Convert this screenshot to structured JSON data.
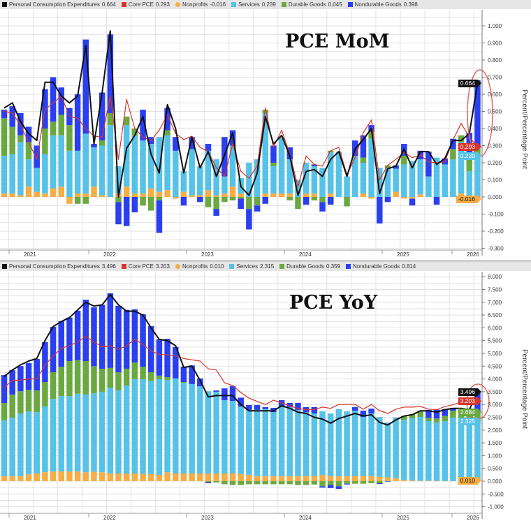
{
  "colors": {
    "pce": "#111111",
    "core": "#d8342b",
    "nonprofits": "#f7ad45",
    "services": "#56c2e8",
    "durable": "#6aa940",
    "nondurable": "#2a3ff0",
    "annotation": "#e06a6a"
  },
  "axis_title": "Percent/Percentage Point",
  "chart_data": [
    {
      "type": "bar",
      "title": "PCE MoM",
      "stacked": true,
      "ylabel": "Percent/Percentage Point",
      "ylim": [
        -0.33,
        1.05
      ],
      "y_ticks": [
        "1.000",
        "0.900",
        "0.800",
        "0.700",
        "0.600",
        "0.500",
        "0.400",
        "0.300",
        "0.200",
        "0.100",
        "0.000",
        "-0.100",
        "-0.200",
        "-0.300"
      ],
      "x_tick_labels": [
        "2021",
        "2022",
        "2023",
        "2024",
        "2025",
        "2026"
      ],
      "grid": true,
      "legend": [
        {
          "name": "Personal Consumption Expenditures",
          "value": "0.664",
          "key": "pce"
        },
        {
          "name": "Core PCE",
          "value": "0.293",
          "key": "core"
        },
        {
          "name": "Nonprofits",
          "value": "-0.016",
          "key": "nonprofits"
        },
        {
          "name": "Services",
          "value": "0.239",
          "key": "services"
        },
        {
          "name": "Durable Goods",
          "value": "0.045",
          "key": "durable"
        },
        {
          "name": "Nondurable Goods",
          "value": "0.398",
          "key": "nondurable"
        }
      ],
      "last_value_tags": [
        {
          "text": "0.664",
          "key": "pce"
        },
        {
          "text": "0.293",
          "key": "core"
        },
        {
          "text": "0.239",
          "key": "services"
        },
        {
          "text": "-0.016",
          "key": "nonprofits"
        }
      ],
      "bar_series": {
        "nonprofits": [
          0.02,
          0.02,
          0.01,
          0.06,
          0.03,
          0.02,
          0.05,
          0.06,
          -0.04,
          0.02,
          0.02,
          0.06,
          0.01,
          0,
          0.02,
          0.06,
          0.02,
          0.02,
          0.05,
          0.03,
          0.04,
          -0.01,
          0.03,
          0.01,
          0.01,
          0.04,
          0.01,
          0.02,
          0.06,
          0.02,
          0,
          0,
          0.02,
          0.02,
          0.02,
          0.02,
          0,
          0.02,
          0.02,
          0,
          0.02,
          0,
          0,
          0,
          0.02,
          -0.01,
          0,
          0,
          0.03,
          -0.01,
          -0.01,
          0.015,
          0,
          0,
          0,
          0,
          0.02,
          0,
          -0.016
        ],
        "services": [
          0.22,
          0.23,
          0.31,
          0.16,
          0.14,
          0.23,
          0.31,
          0.3,
          0.27,
          0.25,
          0.35,
          0.23,
          0.29,
          0.42,
          0.16,
          0.36,
          0.34,
          0.31,
          0.26,
          0.32,
          0.32,
          0.27,
          0.12,
          0.27,
          0.17,
          0.23,
          0.21,
          0.1,
          0.24,
          0.09,
          0.2,
          0.22,
          0.47,
          0.16,
          0.33,
          0.2,
          0.1,
          0.18,
          0.16,
          0.17,
          0.24,
          0.265,
          0.12,
          0.24,
          0.18,
          0.34,
          0.17,
          0.17,
          0.135,
          0.19,
          0.21,
          0.205,
          0.12,
          0.23,
          0.19,
          0.22,
          0.3,
          0.15,
          0.239
        ],
        "durable": [
          0.22,
          0.16,
          0.04,
          0.1,
          0,
          0.15,
          0.08,
          0.12,
          0.15,
          -0.04,
          -0.04,
          0,
          0.03,
          0.07,
          -0.03,
          0.05,
          0.04,
          -0.05,
          -0.08,
          -0.02,
          0.03,
          0,
          0,
          0,
          0,
          -0.06,
          -0.07,
          -0.03,
          -0.02,
          -0.01,
          -0.07,
          -0.05,
          0.02,
          0.02,
          0,
          -0.02,
          -0.07,
          0,
          -0.02,
          -0.03,
          0.01,
          0,
          -0.055,
          0,
          0.03,
          0.04,
          0,
          0.015,
          0,
          0.05,
          0,
          0,
          0,
          0,
          0,
          0.06,
          0.04,
          0.1,
          0.045
        ],
        "nondurable": [
          0.05,
          0.12,
          0.13,
          0.09,
          0.13,
          0.23,
          0.26,
          0.16,
          0.1,
          0.33,
          0.55,
          0.02,
          0.28,
          0.46,
          -0.13,
          -0.17,
          -0.09,
          0.18,
          0.04,
          -0.19,
          0.13,
          0.08,
          -0.05,
          0.07,
          -0.03,
          0.04,
          -0.04,
          0.23,
          0.09,
          -0.06,
          -0.12,
          -0.035,
          -0.04,
          0.1,
          0,
          0.07,
          0,
          -0.045,
          0.01,
          -0.055,
          -0.045,
          0,
          0,
          0.09,
          0.13,
          0.04,
          -0.155,
          -0.03,
          0.02,
          0.07,
          -0.04,
          0.05,
          0.145,
          -0.045,
          0.035,
          0.06,
          -0.03,
          0.125,
          0.398
        ]
      },
      "line_series": {
        "pce": [
          0.52,
          0.55,
          0.44,
          0.37,
          0.33,
          0.67,
          0.67,
          0.59,
          0.55,
          0.59,
          0.885,
          0.31,
          0.61,
          0.97,
          0,
          0.285,
          0.36,
          0.47,
          0.25,
          0.14,
          0.54,
          0.4,
          0.14,
          0.35,
          0.17,
          0.265,
          0.12,
          0.245,
          0.375,
          0.06,
          0.01,
          0.14,
          0.47,
          0.31,
          0.36,
          0.24,
          0.01,
          0.15,
          0.16,
          0.12,
          0.22,
          0.265,
          0.12,
          0.28,
          0.335,
          0.4,
          0.02,
          0.165,
          0.18,
          0.28,
          0.17,
          0.265,
          0.265,
          0.19,
          0.225,
          0.33,
          0.33,
          0.37,
          0.664
        ],
        "core": [
          0.5,
          0.49,
          0.42,
          0.32,
          0.22,
          0.51,
          0.55,
          0.59,
          0.47,
          0.46,
          0.4,
          0.355,
          0.35,
          0.59,
          0.22,
          0.57,
          0.4,
          0.35,
          0.33,
          0.39,
          0.48,
          0.37,
          0.335,
          0.355,
          0.29,
          0.265,
          0.17,
          0.12,
          0.31,
          0.15,
          0.11,
          0.18,
          0.52,
          0.29,
          0.39,
          0.25,
          0.06,
          0.24,
          0.19,
          0.18,
          0.27,
          0.29,
          0.13,
          0.23,
          0.375,
          0.45,
          0.1,
          0.185,
          0.22,
          0.26,
          0.23,
          0.245,
          0.205,
          0.2,
          0.205,
          0.335,
          0.43,
          0.35,
          0.293
        ]
      }
    },
    {
      "type": "bar",
      "title": "PCE YoY",
      "stacked": true,
      "ylabel": "Percent/Percentage Point",
      "ylim": [
        -1.1,
        8.1
      ],
      "y_ticks": [
        "8.000",
        "7.500",
        "7.000",
        "6.500",
        "6.000",
        "5.500",
        "5.000",
        "4.500",
        "4.000",
        "3.500",
        "3.000",
        "2.500",
        "2.000",
        "1.500",
        "1.000",
        "0.500",
        "0.000",
        "-0.500",
        "-1.000"
      ],
      "x_tick_labels": [
        "2021",
        "2022",
        "2023",
        "2024",
        "2025",
        "2026"
      ],
      "grid": true,
      "legend": [
        {
          "name": "Personal Consumption Expenditures",
          "value": "3.496",
          "key": "pce"
        },
        {
          "name": "Core PCE",
          "value": "3.203",
          "key": "core"
        },
        {
          "name": "Nonprofits",
          "value": "0.010",
          "key": "nonprofits"
        },
        {
          "name": "Services",
          "value": "2.315",
          "key": "services"
        },
        {
          "name": "Durable Goods",
          "value": "0.359",
          "key": "durable"
        },
        {
          "name": "Nondurable Goods",
          "value": "0.814",
          "key": "nondurable"
        }
      ],
      "last_value_tags": [
        {
          "text": "3.496",
          "key": "pce"
        },
        {
          "text": "3.203",
          "key": "core"
        },
        {
          "text": "2.684",
          "key": "durable"
        },
        {
          "text": "2.325",
          "key": "services"
        },
        {
          "text": "0.010",
          "key": "nonprofits"
        }
      ],
      "bar_series": {
        "nonprofits": [
          0.2,
          0.2,
          0.2,
          0.27,
          0.3,
          0.35,
          0.38,
          0.38,
          0.38,
          0.38,
          0.35,
          0.37,
          0.35,
          0.3,
          0.3,
          0.3,
          0.3,
          0.28,
          0.28,
          0.25,
          0.35,
          0.3,
          0.3,
          0.3,
          0.3,
          0.3,
          0.3,
          0.3,
          0.3,
          0.28,
          0.25,
          0.2,
          0.2,
          0.2,
          0.2,
          0.2,
          0.2,
          0.2,
          0.2,
          0.25,
          0.2,
          0.2,
          0.2,
          0.2,
          0.2,
          0.2,
          0.17,
          0.15,
          0.12,
          0.05,
          0.03,
          0.02,
          0.02,
          0.01,
          0.01,
          0,
          0,
          0,
          0.01
        ],
        "services": [
          2.18,
          2.29,
          2.45,
          2.46,
          2.4,
          2.57,
          2.84,
          2.95,
          2.95,
          3.04,
          3.04,
          3.07,
          3.15,
          3.36,
          3.25,
          3.44,
          3.69,
          3.71,
          3.65,
          3.74,
          3.61,
          3.72,
          3.55,
          3.5,
          3.41,
          3.22,
          3.2,
          2.87,
          2.84,
          2.64,
          2.54,
          2.59,
          2.62,
          2.5,
          2.72,
          2.7,
          2.59,
          2.5,
          2.45,
          2.48,
          2.45,
          2.62,
          2.53,
          2.56,
          2.31,
          2.45,
          2.34,
          2.15,
          2.37,
          2.35,
          2.43,
          2.49,
          2.33,
          2.29,
          2.34,
          2.49,
          2.48,
          2.3,
          2.315
        ],
        "durable": [
          0.68,
          0.9,
          0.87,
          0.84,
          0.85,
          0.96,
          1.04,
          1.15,
          1.37,
          1.31,
          1.31,
          1.06,
          0.9,
          0.77,
          0.71,
          0.66,
          0.65,
          0.49,
          0.33,
          0.14,
          0.11,
          0,
          0.03,
          0,
          0,
          -0.04,
          -0.05,
          -0.12,
          -0.15,
          -0.15,
          -0.12,
          -0.12,
          -0.12,
          -0.12,
          -0.12,
          -0.12,
          -0.15,
          -0.15,
          -0.13,
          -0.2,
          -0.15,
          -0.2,
          -0.1,
          -0.1,
          -0.1,
          -0.08,
          -0.08,
          0,
          0,
          0.15,
          0.16,
          0.25,
          0.13,
          0.15,
          0.2,
          0.27,
          0.27,
          0.35,
          0.359
        ],
        "nondurable": [
          1.09,
          0.95,
          0.98,
          1.05,
          1.23,
          1.56,
          1.78,
          1.78,
          1.7,
          1.94,
          2.4,
          2.3,
          2.5,
          2.92,
          2.6,
          2.3,
          2.08,
          2.05,
          1.81,
          1.42,
          1.5,
          1.23,
          0.6,
          0.73,
          0.31,
          -0.04,
          0.05,
          0.46,
          0.58,
          0.35,
          0.19,
          0.19,
          0.08,
          0.17,
          0.25,
          0.16,
          0.27,
          0.2,
          0.25,
          -0.05,
          -0.12,
          -0.1,
          -0.03,
          0.14,
          0.25,
          0.19,
          -0.03,
          -0.02,
          0,
          0,
          0,
          0,
          0.31,
          0.35,
          0.27,
          0.1,
          0.09,
          0.2,
          0.814
        ]
      },
      "line_series": {
        "pce": [
          4.1,
          4.35,
          4.55,
          4.7,
          4.8,
          5.5,
          6.05,
          6.25,
          6.4,
          6.7,
          7.0,
          6.85,
          6.9,
          7.3,
          6.9,
          6.65,
          6.65,
          6.5,
          6.0,
          5.55,
          5.5,
          5.3,
          4.45,
          4.5,
          3.95,
          3.3,
          3.35,
          3.35,
          3.35,
          3.0,
          2.75,
          2.75,
          2.75,
          2.75,
          2.95,
          2.85,
          2.7,
          2.65,
          2.5,
          2.43,
          2.27,
          2.45,
          2.55,
          2.65,
          2.55,
          2.6,
          2.3,
          2.2,
          2.4,
          2.55,
          2.6,
          2.75,
          2.75,
          2.7,
          2.8,
          2.85,
          2.85,
          2.8,
          3.496
        ],
        "core": [
          3.66,
          3.95,
          3.95,
          4.0,
          4.0,
          4.54,
          4.9,
          5.2,
          5.3,
          5.45,
          5.66,
          5.45,
          5.25,
          5.3,
          5.15,
          5.3,
          5.55,
          5.35,
          5.1,
          4.95,
          4.95,
          4.9,
          4.8,
          4.75,
          4.7,
          4.4,
          4.35,
          3.85,
          3.74,
          3.47,
          3.25,
          3.12,
          3.0,
          3.17,
          3.06,
          2.95,
          2.84,
          2.8,
          2.8,
          2.9,
          2.85,
          3.0,
          3.0,
          3.0,
          2.82,
          3.0,
          2.76,
          2.65,
          2.82,
          2.9,
          2.9,
          2.92,
          2.82,
          2.8,
          2.92,
          2.99,
          3.1,
          3.0,
          3.203
        ]
      }
    }
  ]
}
